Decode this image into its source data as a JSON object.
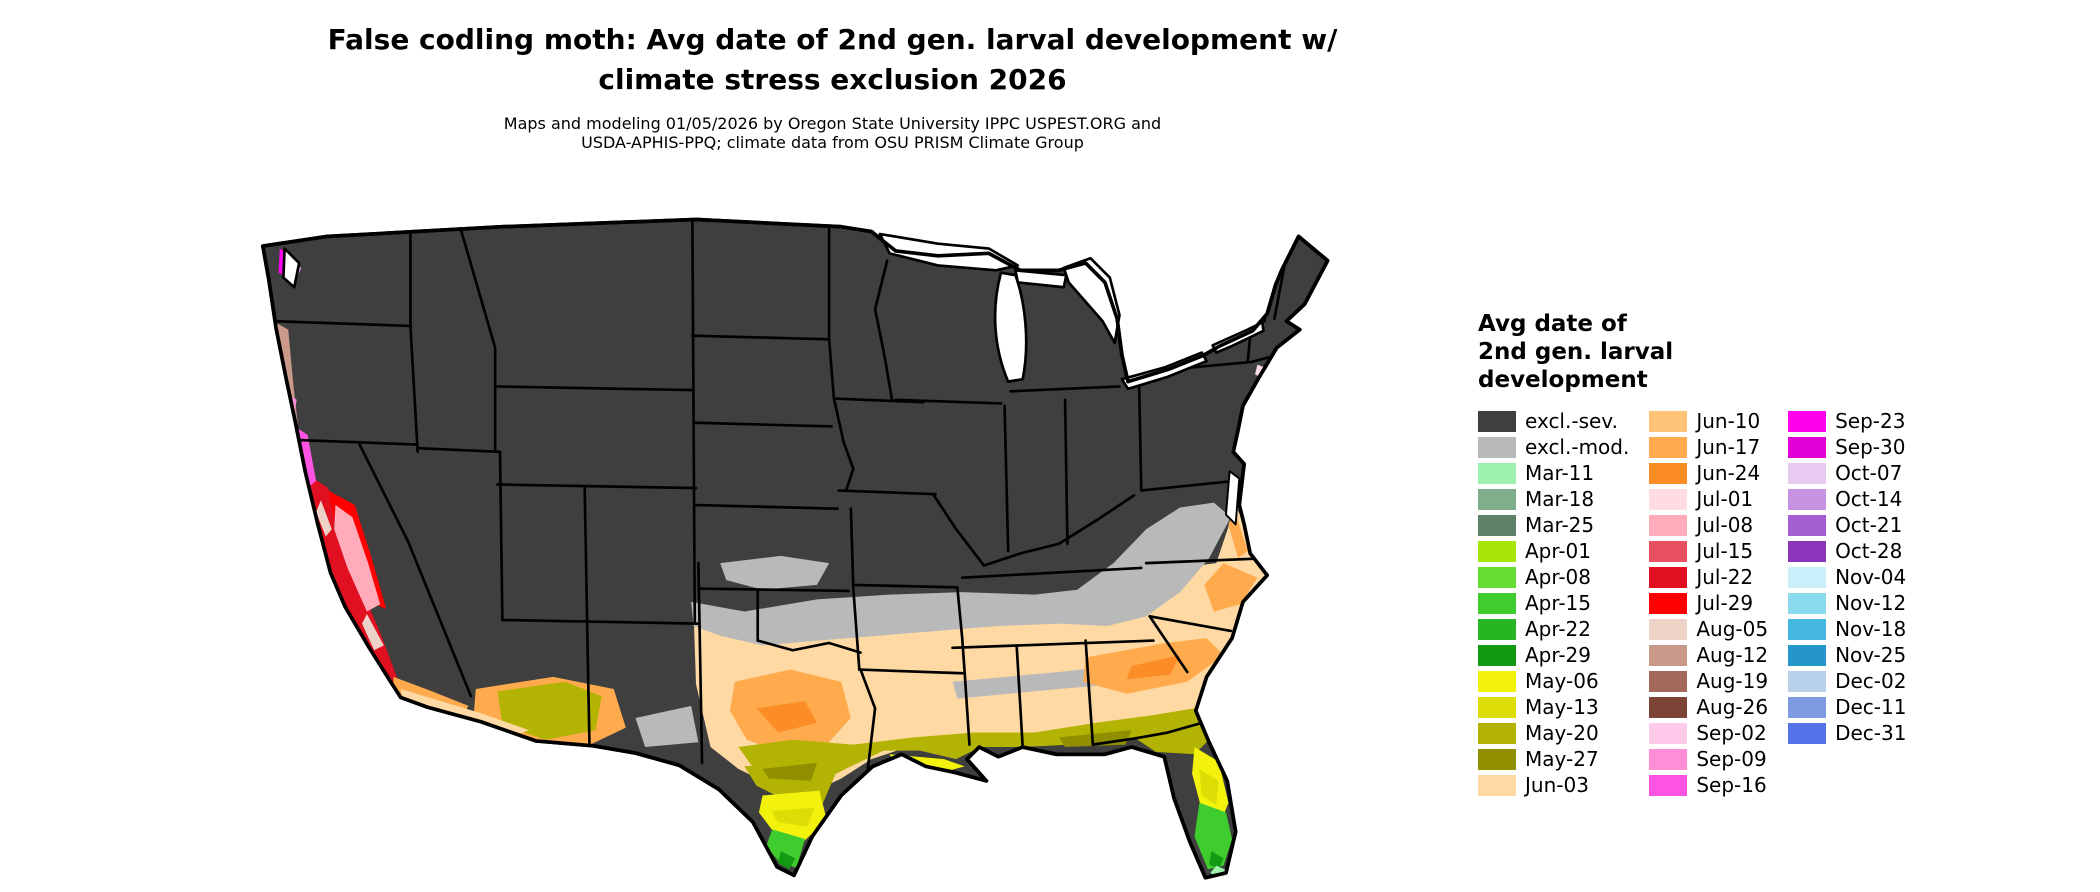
{
  "title": {
    "line1": "False codling moth: Avg date of 2nd gen. larval development w/",
    "line2": "climate stress exclusion 2026"
  },
  "subtitle": {
    "line1": "Maps and modeling 01/05/2026 by Oregon State University IPPC USPEST.ORG and",
    "line2": "USDA-APHIS-PPQ; climate data from OSU PRISM Climate Group"
  },
  "legend": {
    "title_line1": "Avg date of",
    "title_line2": "2nd gen. larval",
    "title_line3": "development",
    "columns": [
      {
        "entries": [
          {
            "label": "excl.-sev.",
            "key": "excl_sev"
          },
          {
            "label": "excl.-mod.",
            "key": "excl_mod"
          },
          {
            "label": "Mar-11",
            "key": "mar11"
          },
          {
            "label": "Mar-18",
            "key": "mar18"
          },
          {
            "label": "Mar-25",
            "key": "mar25"
          },
          {
            "label": "Apr-01",
            "key": "apr01"
          },
          {
            "label": "Apr-08",
            "key": "apr08"
          },
          {
            "label": "Apr-15",
            "key": "apr15"
          },
          {
            "label": "Apr-22",
            "key": "apr22"
          },
          {
            "label": "Apr-29",
            "key": "apr29"
          },
          {
            "label": "May-06",
            "key": "may06"
          },
          {
            "label": "May-13",
            "key": "may13"
          },
          {
            "label": "May-20",
            "key": "may20"
          },
          {
            "label": "May-27",
            "key": "may27"
          },
          {
            "label": "Jun-03",
            "key": "jun03"
          }
        ]
      },
      {
        "entries": [
          {
            "label": "Jun-10",
            "key": "jun10"
          },
          {
            "label": "Jun-17",
            "key": "jun17"
          },
          {
            "label": "Jun-24",
            "key": "jun24"
          },
          {
            "label": "Jul-01",
            "key": "jul01"
          },
          {
            "label": "Jul-08",
            "key": "jul08"
          },
          {
            "label": "Jul-15",
            "key": "jul15"
          },
          {
            "label": "Jul-22",
            "key": "jul22"
          },
          {
            "label": "Jul-29",
            "key": "jul29"
          },
          {
            "label": "Aug-05",
            "key": "aug05"
          },
          {
            "label": "Aug-12",
            "key": "aug12"
          },
          {
            "label": "Aug-19",
            "key": "aug19"
          },
          {
            "label": "Aug-26",
            "key": "aug26"
          },
          {
            "label": "Sep-02",
            "key": "sep02"
          },
          {
            "label": "Sep-09",
            "key": "sep09"
          },
          {
            "label": "Sep-16",
            "key": "sep16"
          }
        ]
      },
      {
        "entries": [
          {
            "label": "Sep-23",
            "key": "sep23"
          },
          {
            "label": "Sep-30",
            "key": "sep30"
          },
          {
            "label": "Oct-07",
            "key": "oct07"
          },
          {
            "label": "Oct-14",
            "key": "oct14"
          },
          {
            "label": "Oct-21",
            "key": "oct21"
          },
          {
            "label": "Oct-28",
            "key": "oct28"
          },
          {
            "label": "Nov-04",
            "key": "nov04"
          },
          {
            "label": "Nov-12",
            "key": "nov12"
          },
          {
            "label": "Nov-18",
            "key": "nov18"
          },
          {
            "label": "Nov-25",
            "key": "nov25"
          },
          {
            "label": "Dec-02",
            "key": "dec02"
          },
          {
            "label": "Dec-11",
            "key": "dec11"
          },
          {
            "label": "Dec-31",
            "key": "dec31"
          }
        ]
      }
    ]
  },
  "map": {
    "palette": {
      "excl_sev": "#3f3f3f",
      "excl_mod": "#b9b9b9",
      "mar11": "#9cf2ac",
      "mar18": "#7fae8d",
      "mar25": "#5e8168",
      "apr01": "#a8e60a",
      "apr08": "#66dd33",
      "apr15": "#3ecc2e",
      "apr22": "#28b524",
      "apr29": "#129b12",
      "may06": "#f2f20c",
      "may13": "#dede06",
      "may20": "#b3b303",
      "may27": "#8f8f00",
      "jun03": "#ffd9a3",
      "jun10": "#ffc377",
      "jun17": "#ffab4d",
      "jun24": "#fb8c26",
      "jul01": "#ffdbe3",
      "jul08": "#ffabba",
      "jul15": "#e85060",
      "jul22": "#e01020",
      "jul29": "#ff0000",
      "aug05": "#eed2c8",
      "aug12": "#c99a8a",
      "aug19": "#a2685a",
      "aug26": "#7c4437",
      "sep02": "#ffc9e9",
      "sep09": "#ff8ed9",
      "sep16": "#ff54e3",
      "sep23": "#ff00ee",
      "sep30": "#e300d6",
      "oct07": "#e9cbf2",
      "oct14": "#c892e3",
      "oct21": "#a55ed1",
      "oct28": "#8a35ba",
      "nov04": "#c9f0fa",
      "nov12": "#8adaee",
      "nov18": "#45b8e0",
      "nov25": "#2496cc",
      "dec02": "#b8d0ea",
      "dec11": "#7d9ae3",
      "dec31": "#5572e8",
      "water": "#ffffff",
      "border": "#000000"
    }
  }
}
